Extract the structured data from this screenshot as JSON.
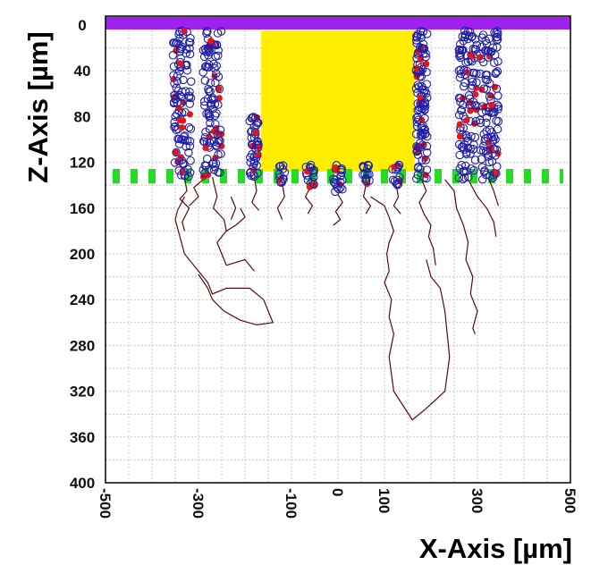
{
  "chart_data": {
    "type": "scatter",
    "title": "",
    "xlabel": "X-Axis [µm]",
    "ylabel": "Z-Axis [µm]",
    "xlim": [
      -500,
      500
    ],
    "ylim": [
      400,
      0
    ],
    "y_inverted": true,
    "grid": true,
    "x_ticks": [
      -500,
      -300,
      -100,
      0,
      100,
      300,
      500
    ],
    "x_tick_labels": [
      "-500",
      "-300",
      "-100",
      "0",
      "100",
      "300",
      "500"
    ],
    "y_ticks": [
      0,
      40,
      80,
      120,
      160,
      200,
      240,
      280,
      320,
      360,
      400
    ],
    "y_tick_labels": [
      "0",
      "40",
      "80",
      "120",
      "160",
      "200",
      "240",
      "280",
      "320",
      "360",
      "400"
    ],
    "colors": {
      "top_band": "#a020f0",
      "block": "#ffee00",
      "dashed_line": "#22dd22",
      "open_marker": "#1f1fa8",
      "filled_marker": "#e01818",
      "track": "#5a0a0a"
    },
    "regions": [
      {
        "shape": "band",
        "z_from": -5,
        "z_to": 5,
        "x_from": -500,
        "x_to": 500,
        "color_key": "top_band"
      },
      {
        "shape": "rect",
        "x_from": -165,
        "x_to": 165,
        "z_from": 5,
        "z_to": 128,
        "color_key": "block"
      },
      {
        "shape": "dashed_line",
        "z": 132,
        "x_from": -500,
        "x_to": 500,
        "color_key": "dashed_line"
      }
    ],
    "columns": [
      {
        "x": -335,
        "x_amp": 20,
        "z_top": 5,
        "z_bottom": 133
      },
      {
        "x": -270,
        "x_amp": 20,
        "z_top": 5,
        "z_bottom": 133
      },
      {
        "x": -180,
        "x_amp": 10,
        "z_top": 80,
        "z_bottom": 133
      },
      {
        "x": -120,
        "x_amp": 6,
        "z_top": 122,
        "z_bottom": 138
      },
      {
        "x": -60,
        "x_amp": 10,
        "z_top": 122,
        "z_bottom": 142
      },
      {
        "x": 0,
        "x_amp": 10,
        "z_top": 122,
        "z_bottom": 148
      },
      {
        "x": 60,
        "x_amp": 8,
        "z_top": 122,
        "z_bottom": 140
      },
      {
        "x": 125,
        "x_amp": 10,
        "z_top": 122,
        "z_bottom": 140
      },
      {
        "x": 180,
        "x_amp": 12,
        "z_top": 5,
        "z_bottom": 135
      },
      {
        "x": 280,
        "x_amp": 20,
        "z_top": 5,
        "z_bottom": 135
      },
      {
        "x": 325,
        "x_amp": 20,
        "z_top": 5,
        "z_bottom": 135
      }
    ],
    "tracks": [
      [
        [
          -330,
          133
        ],
        [
          -325,
          145
        ],
        [
          -340,
          152
        ],
        [
          -320,
          160
        ],
        [
          -335,
          172
        ],
        [
          -330,
          180
        ]
      ],
      [
        [
          -330,
          150
        ],
        [
          -345,
          162
        ],
        [
          -350,
          170
        ]
      ],
      [
        [
          -290,
          135
        ],
        [
          -310,
          142
        ],
        [
          -300,
          150
        ],
        [
          -320,
          158
        ]
      ],
      [
        [
          -270,
          133
        ],
        [
          -260,
          150
        ],
        [
          -268,
          160
        ],
        [
          -245,
          170
        ],
        [
          -240,
          180
        ],
        [
          -260,
          190
        ],
        [
          -250,
          200
        ],
        [
          -240,
          210
        ]
      ],
      [
        [
          -240,
          210
        ],
        [
          -200,
          205
        ],
        [
          -180,
          215
        ]
      ],
      [
        [
          -240,
          180
        ],
        [
          -220,
          175
        ],
        [
          -200,
          168
        ],
        [
          -210,
          160
        ]
      ],
      [
        [
          -230,
          150
        ],
        [
          -220,
          160
        ],
        [
          -230,
          170
        ]
      ],
      [
        [
          -350,
          170
        ],
        [
          -340,
          185
        ],
        [
          -330,
          200
        ],
        [
          -300,
          215
        ],
        [
          -280,
          225
        ],
        [
          -270,
          235
        ],
        [
          -240,
          230
        ],
        [
          -190,
          230
        ],
        [
          -160,
          240
        ],
        [
          -150,
          250
        ],
        [
          -140,
          260
        ],
        [
          -175,
          262
        ],
        [
          -210,
          258
        ],
        [
          -245,
          250
        ],
        [
          -270,
          240
        ],
        [
          -280,
          230
        ],
        [
          -300,
          218
        ]
      ],
      [
        [
          -180,
          133
        ],
        [
          -175,
          145
        ],
        [
          -185,
          155
        ],
        [
          -170,
          162
        ]
      ],
      [
        [
          -120,
          138
        ],
        [
          -115,
          150
        ],
        [
          -130,
          160
        ],
        [
          -120,
          170
        ]
      ],
      [
        [
          -60,
          142
        ],
        [
          -70,
          150
        ],
        [
          -55,
          158
        ],
        [
          -65,
          165
        ]
      ],
      [
        [
          0,
          148
        ],
        [
          10,
          155
        ],
        [
          -5,
          163
        ],
        [
          5,
          170
        ],
        [
          -10,
          175
        ]
      ],
      [
        [
          60,
          140
        ],
        [
          55,
          150
        ],
        [
          70,
          158
        ],
        [
          60,
          165
        ]
      ],
      [
        [
          70,
          150
        ],
        [
          100,
          158
        ],
        [
          110,
          168
        ],
        [
          120,
          180
        ]
      ],
      [
        [
          120,
          180
        ],
        [
          110,
          190
        ],
        [
          105,
          200
        ],
        [
          110,
          215
        ],
        [
          100,
          225
        ],
        [
          115,
          240
        ],
        [
          110,
          255
        ],
        [
          120,
          270
        ],
        [
          110,
          290
        ],
        [
          120,
          320
        ],
        [
          160,
          345
        ],
        [
          190,
          335
        ],
        [
          230,
          320
        ],
        [
          240,
          290
        ],
        [
          230,
          250
        ],
        [
          220,
          230
        ],
        [
          200,
          220
        ],
        [
          190,
          205
        ]
      ],
      [
        [
          125,
          140
        ],
        [
          130,
          150
        ],
        [
          120,
          158
        ],
        [
          135,
          165
        ]
      ],
      [
        [
          180,
          135
        ],
        [
          190,
          145
        ],
        [
          175,
          155
        ],
        [
          185,
          165
        ],
        [
          200,
          175
        ],
        [
          195,
          185
        ],
        [
          205,
          195
        ],
        [
          210,
          210
        ]
      ],
      [
        [
          230,
          135
        ],
        [
          250,
          145
        ],
        [
          255,
          160
        ],
        [
          270,
          175
        ]
      ],
      [
        [
          270,
          175
        ],
        [
          280,
          190
        ],
        [
          275,
          205
        ],
        [
          290,
          220
        ],
        [
          285,
          235
        ],
        [
          300,
          250
        ],
        [
          290,
          265
        ],
        [
          295,
          270
        ]
      ],
      [
        [
          280,
          135
        ],
        [
          300,
          150
        ],
        [
          320,
          160
        ],
        [
          335,
          172
        ],
        [
          340,
          185
        ]
      ],
      [
        [
          325,
          135
        ],
        [
          335,
          145
        ],
        [
          345,
          158
        ]
      ]
    ]
  }
}
